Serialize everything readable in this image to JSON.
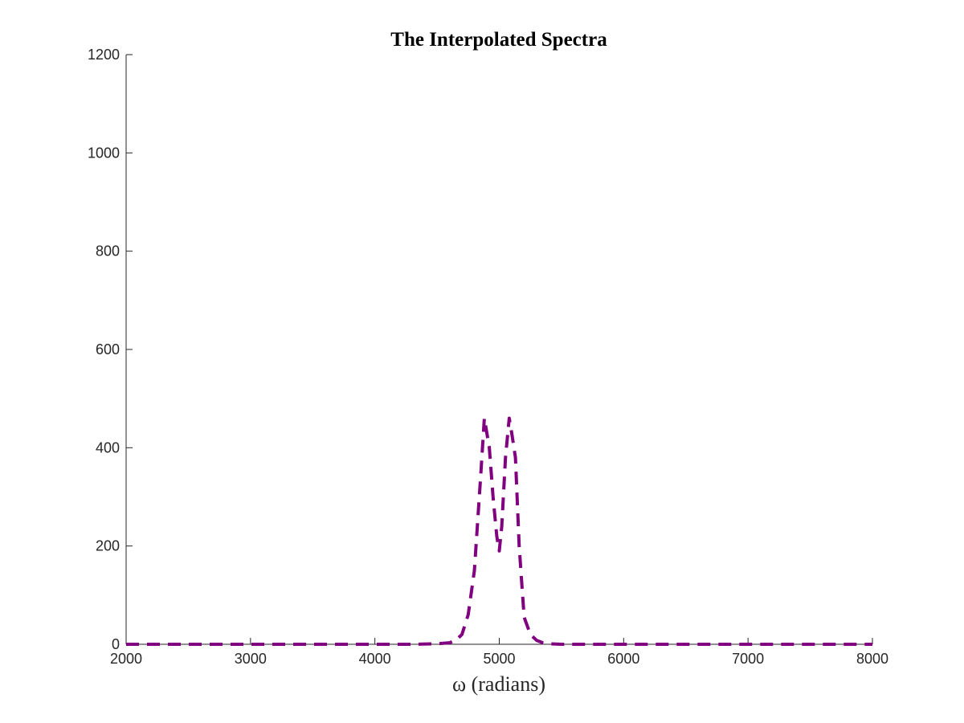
{
  "chart_data": {
    "type": "line",
    "title": "The Interpolated Spectra",
    "xlabel": "ω (radians)",
    "ylabel": "",
    "xlim": [
      2000,
      8000
    ],
    "ylim": [
      0,
      1200
    ],
    "xticks": [
      2000,
      3000,
      4000,
      5000,
      6000,
      7000,
      8000
    ],
    "yticks": [
      0,
      200,
      400,
      600,
      800,
      1000,
      1200
    ],
    "xtick_labels": [
      "2000",
      "3000",
      "4000",
      "5000",
      "6000",
      "7000",
      "8000"
    ],
    "ytick_labels": [
      "0",
      "200",
      "400",
      "600",
      "800",
      "1000",
      "1200"
    ],
    "grid": false,
    "series": [
      {
        "color": "#800080",
        "style": "dashed",
        "x": [
          2000,
          2500,
          3000,
          3500,
          4000,
          4300,
          4500,
          4600,
          4650,
          4700,
          4750,
          4800,
          4850,
          4880,
          4920,
          4950,
          4980,
          5000,
          5020,
          5050,
          5080,
          5100,
          5130,
          5160,
          5200,
          5250,
          5300,
          5350,
          5400,
          5500,
          6000,
          7000,
          8000
        ],
        "y": [
          0,
          0,
          0,
          0,
          0,
          0,
          1,
          3,
          8,
          20,
          60,
          150,
          340,
          460,
          400,
          300,
          220,
          190,
          240,
          380,
          460,
          430,
          380,
          200,
          55,
          20,
          8,
          3,
          1,
          0,
          0,
          0,
          0
        ]
      }
    ]
  }
}
